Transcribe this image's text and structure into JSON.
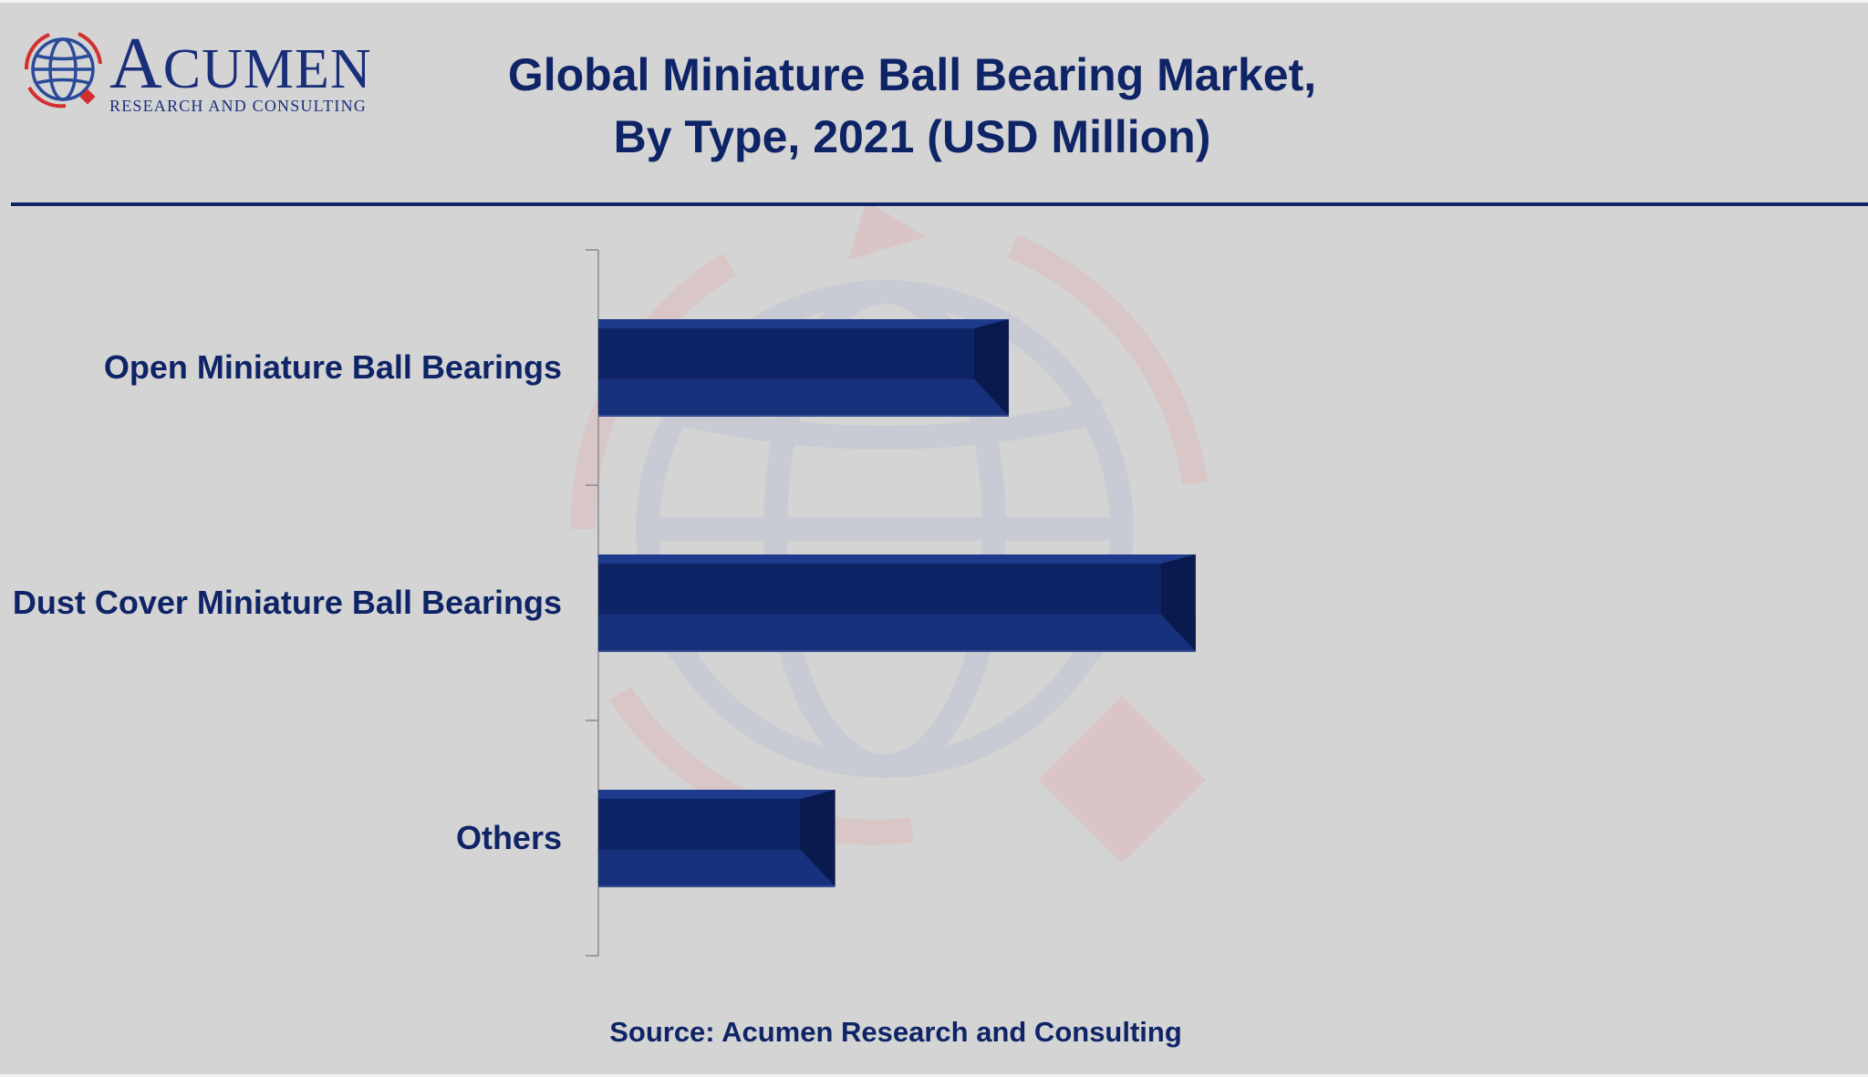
{
  "logo": {
    "brand_first": "A",
    "brand_rest": "CUMEN",
    "tagline": "RESEARCH AND CONSULTING"
  },
  "header": {
    "title_line1": "Global Miniature Ball Bearing Market,",
    "title_line2": "By Type, 2021 (USD Million)"
  },
  "footer": {
    "source": "Source: Acumen Research and Consulting"
  },
  "colors": {
    "background": "#d4d4d4",
    "bar": "#0f2466",
    "bar_light": "#17317c",
    "bar_dark": "#0a1a4e",
    "text": "#0f2466",
    "logo_red": "#d32f2f"
  },
  "chart_data": {
    "type": "bar",
    "orientation": "horizontal",
    "title": "Global Miniature Ball Bearing Market, By Type, 2021 (USD Million)",
    "categories": [
      "Open Miniature Ball Bearings",
      "Dust Cover Miniature Ball Bearings",
      "Others"
    ],
    "series": [
      {
        "values": [
          345,
          502,
          199
        ]
      }
    ],
    "xlim": [
      0,
      690
    ],
    "x_axis_visible": false,
    "grid": false,
    "legend": "none"
  }
}
